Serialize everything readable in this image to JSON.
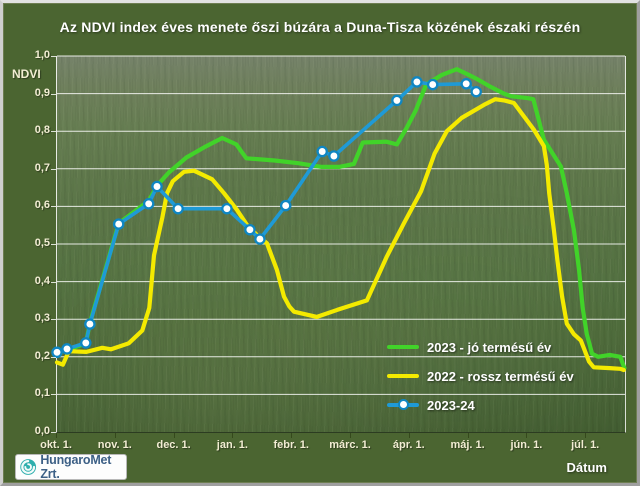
{
  "title": "Az NDVI index éves menete őszi búzára a Duna-Tisza közének északi részén",
  "axes": {
    "y_label": "NDVI",
    "y_ticks": [
      "1,0",
      "0,9",
      "0,8",
      "0,7",
      "0,6",
      "0,5",
      "0,4",
      "0,3",
      "0,2",
      "0,1",
      "0,0"
    ],
    "x_label": "Dátum",
    "x_ticks": [
      "okt. 1.",
      "nov. 1.",
      "dec. 1.",
      "jan. 1.",
      "febr. 1.",
      "márc. 1.",
      "ápr. 1.",
      "máj. 1.",
      "jún. 1.",
      "júl. 1."
    ]
  },
  "logo": {
    "text": "HungaroMet Zrt.",
    "icon": "spiral-icon",
    "icon_color": "#2fafae",
    "text_color": "#3d6086"
  },
  "colors": {
    "panel_background": "#4b6531",
    "gridline": "#ffffff",
    "axis_text": "#f2edd3",
    "title_text": "#ffffff",
    "green_series": "#41d329",
    "yellow_series": "#f4ea00",
    "blue_series": "#1f9ad6",
    "marker_ring": "#0f86c2"
  },
  "chart_data": {
    "type": "line",
    "title": "Az NDVI index éves menete őszi búzára a Duna-Tisza közének északi részén",
    "xlabel": "Dátum",
    "ylabel": "NDVI",
    "ylim": [
      0,
      1
    ],
    "grid": true,
    "legend_position": "lower-right-inside",
    "x_unit": "months since Oct 1 (0 = okt. 1., 1 = nov. 1., ... 9 = júl. 1.)",
    "x_tick_positions": [
      0,
      1,
      2,
      3,
      4,
      5,
      6,
      7,
      8,
      9
    ],
    "series": [
      {
        "name": "2023 - jó termésű év",
        "color": "#41d329",
        "marker": "none",
        "points": [
          [
            0,
            0.21
          ],
          [
            0.17,
            0.218
          ],
          [
            0.49,
            0.235
          ],
          [
            0.56,
            0.29
          ],
          [
            1.05,
            0.555
          ],
          [
            1.56,
            0.615
          ],
          [
            1.7,
            0.655
          ],
          [
            1.9,
            0.69
          ],
          [
            2.2,
            0.73
          ],
          [
            2.5,
            0.757
          ],
          [
            2.81,
            0.782
          ],
          [
            3.05,
            0.765
          ],
          [
            3.22,
            0.728
          ],
          [
            3.7,
            0.722
          ],
          [
            4.1,
            0.715
          ],
          [
            4.5,
            0.705
          ],
          [
            4.8,
            0.705
          ],
          [
            5.05,
            0.713
          ],
          [
            5.2,
            0.77
          ],
          [
            5.6,
            0.772
          ],
          [
            5.78,
            0.765
          ],
          [
            5.95,
            0.81
          ],
          [
            6.1,
            0.855
          ],
          [
            6.28,
            0.925
          ],
          [
            6.55,
            0.95
          ],
          [
            6.8,
            0.965
          ],
          [
            7.0,
            0.95
          ],
          [
            7.13,
            0.94
          ],
          [
            7.35,
            0.92
          ],
          [
            7.6,
            0.9
          ],
          [
            7.72,
            0.893
          ],
          [
            8.0,
            0.888
          ],
          [
            8.1,
            0.885
          ],
          [
            8.28,
            0.777
          ],
          [
            8.57,
            0.706
          ],
          [
            8.67,
            0.635
          ],
          [
            8.79,
            0.537
          ],
          [
            8.88,
            0.43
          ],
          [
            8.94,
            0.33
          ],
          [
            9.01,
            0.26
          ],
          [
            9.1,
            0.208
          ],
          [
            9.2,
            0.2
          ],
          [
            9.4,
            0.205
          ],
          [
            9.58,
            0.2
          ],
          [
            9.65,
            0.17
          ]
        ]
      },
      {
        "name": "2022 - rossz termésű év",
        "color": "#f4ea00",
        "marker": "none",
        "points": [
          [
            0,
            0.185
          ],
          [
            0.1,
            0.179
          ],
          [
            0.2,
            0.215
          ],
          [
            0.5,
            0.213
          ],
          [
            0.77,
            0.224
          ],
          [
            0.92,
            0.22
          ],
          [
            1.22,
            0.236
          ],
          [
            1.45,
            0.27
          ],
          [
            1.57,
            0.33
          ],
          [
            1.65,
            0.47
          ],
          [
            1.79,
            0.57
          ],
          [
            1.87,
            0.635
          ],
          [
            1.97,
            0.667
          ],
          [
            2.16,
            0.692
          ],
          [
            2.33,
            0.695
          ],
          [
            2.64,
            0.672
          ],
          [
            2.84,
            0.635
          ],
          [
            3.06,
            0.591
          ],
          [
            3.23,
            0.551
          ],
          [
            3.4,
            0.524
          ],
          [
            3.57,
            0.502
          ],
          [
            3.74,
            0.431
          ],
          [
            3.86,
            0.36
          ],
          [
            3.95,
            0.334
          ],
          [
            4.03,
            0.32
          ],
          [
            4.42,
            0.306
          ],
          [
            4.77,
            0.325
          ],
          [
            5.27,
            0.35
          ],
          [
            5.61,
            0.467
          ],
          [
            5.9,
            0.555
          ],
          [
            6.19,
            0.64
          ],
          [
            6.42,
            0.74
          ],
          [
            6.63,
            0.8
          ],
          [
            6.88,
            0.835
          ],
          [
            7.26,
            0.87
          ],
          [
            7.45,
            0.885
          ],
          [
            7.6,
            0.882
          ],
          [
            7.77,
            0.875
          ],
          [
            8.11,
            0.804
          ],
          [
            8.28,
            0.76
          ],
          [
            8.33,
            0.71
          ],
          [
            8.37,
            0.635
          ],
          [
            8.45,
            0.537
          ],
          [
            8.51,
            0.457
          ],
          [
            8.59,
            0.36
          ],
          [
            8.67,
            0.288
          ],
          [
            8.79,
            0.26
          ],
          [
            8.91,
            0.243
          ],
          [
            9.05,
            0.187
          ],
          [
            9.13,
            0.172
          ],
          [
            9.4,
            0.17
          ],
          [
            9.58,
            0.168
          ],
          [
            9.64,
            0.165
          ]
        ]
      },
      {
        "name": "2023-24",
        "color": "#1f9ad6",
        "marker": "circle",
        "marker_ring": "#0f86c2",
        "points": [
          [
            0,
            0.212
          ],
          [
            0.17,
            0.221
          ],
          [
            0.49,
            0.237
          ],
          [
            0.56,
            0.287
          ],
          [
            1.05,
            0.553
          ],
          [
            1.56,
            0.607
          ],
          [
            1.7,
            0.653
          ],
          [
            2.06,
            0.594
          ],
          [
            2.89,
            0.594
          ],
          [
            3.28,
            0.538
          ],
          [
            3.45,
            0.513
          ],
          [
            3.89,
            0.602
          ],
          [
            4.51,
            0.746
          ],
          [
            4.71,
            0.734
          ],
          [
            5.78,
            0.882
          ],
          [
            6.12,
            0.931
          ],
          [
            6.39,
            0.924
          ],
          [
            6.96,
            0.926
          ],
          [
            7.13,
            0.905
          ]
        ]
      }
    ]
  }
}
